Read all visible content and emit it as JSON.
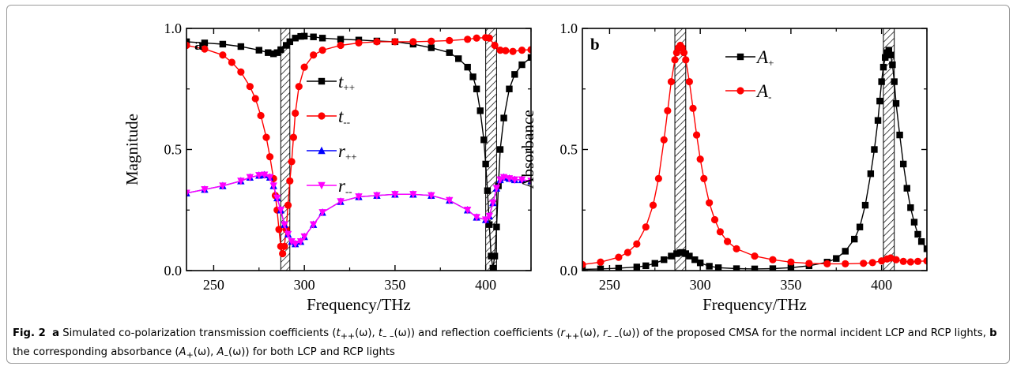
{
  "caption": {
    "fig": "Fig. 2",
    "a": "a",
    "text1": " Simulated co-polarization transmission coefficients (",
    "t_pp": "t",
    "t_pp_sub": "++",
    "sep1": "(ω), ",
    "t_mm": "t",
    "t_mm_sub": "– –",
    "text2": "(ω)) and reflection coefficients (",
    "r_pp": "r",
    "r_pp_sub": "++",
    "sep2": "(ω), ",
    "r_mm": "r",
    "r_mm_sub": "– –",
    "text3": "(ω)) of the proposed CMSA for the normal incident LCP and RCP lights, ",
    "b": "b",
    "text4": " the corresponding absorbance (",
    "A_p": "A",
    "A_p_sub": "+",
    "sep3": "(ω), ",
    "A_m": "A",
    "A_m_sub": "–",
    "text5": "(ω)) for both LCP and RCP lights"
  },
  "chart_data": [
    {
      "panel_label": "a",
      "type": "line",
      "xlabel": "Frequency/THz",
      "ylabel": "Magnitude",
      "xlim": [
        235,
        425
      ],
      "ylim": [
        0,
        1
      ],
      "xticks": [
        250,
        300,
        350,
        400
      ],
      "xtick_labels": [
        "250",
        "300",
        "350",
        "400"
      ],
      "yticks": [
        0,
        0.5,
        1
      ],
      "ytick_labels": [
        "0.0",
        "0.5",
        "1.0"
      ],
      "hatched_bands": [
        [
          287,
          292
        ],
        [
          400,
          406
        ]
      ],
      "legend_position": "center",
      "series": [
        {
          "name": "t",
          "sub": "++",
          "color": "#000000",
          "marker": "square",
          "x": [
            235,
            245,
            255,
            265,
            275,
            280,
            283,
            285,
            287,
            290,
            292,
            295,
            298,
            300,
            305,
            310,
            320,
            330,
            340,
            350,
            360,
            370,
            380,
            385,
            390,
            393,
            395,
            397,
            399,
            400,
            401,
            402,
            403,
            404,
            405,
            406,
            407,
            408,
            410,
            413,
            416,
            420,
            425
          ],
          "y": [
            0.945,
            0.94,
            0.935,
            0.925,
            0.91,
            0.9,
            0.895,
            0.9,
            0.912,
            0.93,
            0.945,
            0.96,
            0.967,
            0.968,
            0.965,
            0.96,
            0.955,
            0.952,
            0.948,
            0.945,
            0.935,
            0.92,
            0.9,
            0.875,
            0.84,
            0.8,
            0.75,
            0.66,
            0.54,
            0.44,
            0.33,
            0.19,
            0.06,
            0.01,
            0.06,
            0.18,
            0.35,
            0.5,
            0.63,
            0.75,
            0.81,
            0.85,
            0.88
          ]
        },
        {
          "name": "t",
          "sub": "--",
          "color": "#ff0000",
          "marker": "circle",
          "x": [
            235,
            245,
            255,
            260,
            265,
            270,
            273,
            276,
            279,
            281,
            283,
            284,
            285,
            286,
            287,
            288,
            289,
            290,
            291,
            292,
            293,
            294,
            295,
            297,
            300,
            305,
            310,
            320,
            330,
            340,
            350,
            360,
            370,
            380,
            390,
            395,
            400,
            402,
            405,
            408,
            411,
            415,
            420,
            425
          ],
          "y": [
            0.93,
            0.915,
            0.89,
            0.86,
            0.82,
            0.76,
            0.71,
            0.64,
            0.55,
            0.47,
            0.38,
            0.31,
            0.25,
            0.17,
            0.1,
            0.07,
            0.1,
            0.17,
            0.27,
            0.37,
            0.45,
            0.55,
            0.65,
            0.76,
            0.84,
            0.89,
            0.91,
            0.93,
            0.94,
            0.945,
            0.945,
            0.945,
            0.947,
            0.95,
            0.955,
            0.96,
            0.962,
            0.96,
            0.93,
            0.91,
            0.908,
            0.905,
            0.91,
            0.912
          ]
        },
        {
          "name": "r",
          "sub": "++",
          "color": "#0000ff",
          "marker": "triangle",
          "x": [
            235,
            245,
            255,
            265,
            270,
            275,
            278,
            281,
            283,
            285,
            287,
            289,
            291,
            293,
            295,
            298,
            300,
            305,
            310,
            320,
            330,
            340,
            350,
            360,
            370,
            380,
            390,
            395,
            400,
            402,
            404,
            406,
            408,
            410,
            413,
            416,
            420,
            425
          ],
          "y": [
            0.32,
            0.335,
            0.35,
            0.37,
            0.385,
            0.393,
            0.395,
            0.385,
            0.35,
            0.3,
            0.25,
            0.19,
            0.15,
            0.12,
            0.11,
            0.12,
            0.14,
            0.19,
            0.24,
            0.285,
            0.305,
            0.31,
            0.315,
            0.315,
            0.31,
            0.29,
            0.25,
            0.22,
            0.21,
            0.225,
            0.28,
            0.34,
            0.375,
            0.385,
            0.38,
            0.375,
            0.375,
            0.37
          ]
        },
        {
          "name": "r",
          "sub": "--",
          "color": "#ff00ff",
          "marker": "triangle-down",
          "x": [
            235,
            245,
            255,
            265,
            270,
            275,
            278,
            281,
            283,
            285,
            287,
            289,
            291,
            293,
            295,
            298,
            300,
            305,
            310,
            320,
            330,
            340,
            350,
            360,
            370,
            380,
            390,
            395,
            400,
            402,
            404,
            406,
            408,
            410,
            413,
            416,
            420,
            425
          ],
          "y": [
            0.32,
            0.335,
            0.35,
            0.37,
            0.385,
            0.393,
            0.395,
            0.385,
            0.35,
            0.3,
            0.25,
            0.19,
            0.15,
            0.12,
            0.11,
            0.12,
            0.14,
            0.19,
            0.24,
            0.285,
            0.305,
            0.31,
            0.315,
            0.315,
            0.31,
            0.29,
            0.25,
            0.22,
            0.21,
            0.225,
            0.28,
            0.34,
            0.375,
            0.385,
            0.38,
            0.375,
            0.375,
            0.37
          ]
        }
      ]
    },
    {
      "panel_label": "b",
      "type": "line",
      "xlabel": "Frequency/THz",
      "ylabel": "Absorbance",
      "xlim": [
        235,
        425
      ],
      "ylim": [
        0,
        1
      ],
      "xticks": [
        250,
        300,
        350,
        400
      ],
      "xtick_labels": [
        "250",
        "300",
        "350",
        "400"
      ],
      "yticks": [
        0,
        0.5,
        1
      ],
      "ytick_labels": [
        "0.0",
        "0.5",
        "1.0"
      ],
      "hatched_bands": [
        [
          286,
          292
        ],
        [
          401,
          407
        ]
      ],
      "legend_position": "top-center",
      "series": [
        {
          "name": "A",
          "sub": "+",
          "color": "#000000",
          "marker": "square",
          "x": [
            235,
            245,
            255,
            265,
            270,
            275,
            280,
            284,
            287,
            289,
            290,
            292,
            294,
            297,
            300,
            305,
            310,
            320,
            330,
            340,
            350,
            360,
            370,
            375,
            380,
            385,
            388,
            391,
            394,
            396,
            398,
            399,
            400,
            401,
            402,
            403,
            404,
            405,
            406,
            407,
            408,
            410,
            412,
            414,
            416,
            418,
            420,
            422,
            425
          ],
          "y": [
            0.005,
            0.007,
            0.01,
            0.015,
            0.02,
            0.03,
            0.045,
            0.06,
            0.07,
            0.074,
            0.075,
            0.07,
            0.06,
            0.045,
            0.032,
            0.018,
            0.012,
            0.008,
            0.007,
            0.008,
            0.012,
            0.02,
            0.035,
            0.05,
            0.08,
            0.13,
            0.18,
            0.27,
            0.4,
            0.5,
            0.62,
            0.7,
            0.78,
            0.84,
            0.88,
            0.9,
            0.91,
            0.89,
            0.85,
            0.78,
            0.69,
            0.56,
            0.44,
            0.34,
            0.26,
            0.2,
            0.15,
            0.12,
            0.09
          ]
        },
        {
          "name": "A",
          "sub": "-",
          "color": "#ff0000",
          "marker": "circle",
          "x": [
            235,
            245,
            255,
            260,
            265,
            270,
            274,
            277,
            280,
            282,
            284,
            286,
            287,
            288,
            289,
            290,
            291,
            292,
            294,
            296,
            298,
            300,
            302,
            305,
            308,
            311,
            315,
            320,
            330,
            340,
            350,
            360,
            370,
            380,
            390,
            395,
            400,
            403,
            405,
            408,
            412,
            416,
            420,
            425
          ],
          "y": [
            0.025,
            0.035,
            0.055,
            0.075,
            0.11,
            0.18,
            0.27,
            0.38,
            0.54,
            0.66,
            0.78,
            0.87,
            0.9,
            0.92,
            0.93,
            0.92,
            0.9,
            0.87,
            0.78,
            0.67,
            0.56,
            0.46,
            0.38,
            0.28,
            0.21,
            0.16,
            0.12,
            0.09,
            0.06,
            0.045,
            0.035,
            0.03,
            0.028,
            0.028,
            0.03,
            0.033,
            0.04,
            0.048,
            0.052,
            0.045,
            0.038,
            0.036,
            0.038,
            0.04
          ]
        }
      ]
    }
  ]
}
